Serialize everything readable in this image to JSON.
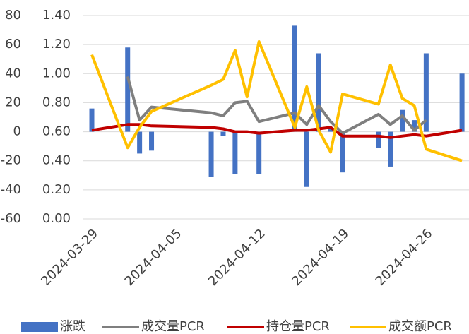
{
  "chart_data": {
    "type": "bar_line",
    "x": [
      "2024-03-29",
      "2024-04-01",
      "2024-04-02",
      "2024-04-03",
      "2024-04-08",
      "2024-04-09",
      "2024-04-10",
      "2024-04-11",
      "2024-04-12",
      "2024-04-15",
      "2024-04-16",
      "2024-04-17",
      "2024-04-18",
      "2024-04-19",
      "2024-04-22",
      "2024-04-23",
      "2024-04-24",
      "2024-04-25",
      "2024-04-26",
      "2024-04-29"
    ],
    "series": [
      {
        "name": "涨跌",
        "type": "bar",
        "color": "#4472c4",
        "values": [
          16,
          58,
          -15,
          -13,
          -31,
          -3,
          -29,
          0,
          -29,
          73,
          -38,
          54,
          2,
          -28,
          -11,
          -24,
          15,
          8,
          54,
          40
        ]
      },
      {
        "name": "成交量PCR",
        "type": "line",
        "axis": "y2",
        "color": "#7f7f7f",
        "values": [
          null,
          0.98,
          0.68,
          0.77,
          0.73,
          0.71,
          0.8,
          0.81,
          0.67,
          0.73,
          0.65,
          0.78,
          0.67,
          0.59,
          0.72,
          0.65,
          0.71,
          0.61,
          0.68,
          null
        ]
      },
      {
        "name": "持仓量PCR",
        "type": "line",
        "axis": "y2",
        "color": "#c00000",
        "values": [
          0.61,
          0.65,
          0.65,
          0.64,
          0.63,
          0.62,
          0.6,
          0.6,
          0.59,
          0.61,
          0.61,
          0.62,
          0.63,
          0.57,
          0.57,
          0.56,
          0.57,
          0.58,
          0.57,
          0.61
        ]
      },
      {
        "name": "成交额PCR",
        "type": "line",
        "axis": "y2",
        "color": "#ffc000",
        "values": [
          1.13,
          0.49,
          0.63,
          0.74,
          0.92,
          0.96,
          1.16,
          0.84,
          1.22,
          0.63,
          0.91,
          0.61,
          0.46,
          0.86,
          0.79,
          1.06,
          0.83,
          0.78,
          0.48,
          0.4
        ]
      }
    ],
    "xlim": [
      "2024-03-29",
      "2024-04-30"
    ],
    "xticks": [
      "2024-03-29",
      "2024-04-05",
      "2024-04-12",
      "2024-04-19",
      "2024-04-26"
    ],
    "ylim": [
      -60,
      80
    ],
    "yticks": [
      -60,
      -40,
      -20,
      0,
      20,
      40,
      60,
      80
    ],
    "y2lim": [
      0,
      1.4
    ],
    "y2ticks": [
      {
        "value": 0,
        "label": "0.00"
      },
      {
        "value": 0.2,
        "label": "0.20"
      },
      {
        "value": 0.4,
        "label": "0.40"
      },
      {
        "value": 0.6,
        "label": "0.60"
      },
      {
        "value": 0.8,
        "label": "0.80"
      },
      {
        "value": 1.0,
        "label": "1.00"
      },
      {
        "value": 1.2,
        "label": "1.20"
      },
      {
        "value": 1.4,
        "label": "1.40"
      }
    ],
    "grid": true,
    "legend": "bottom"
  }
}
